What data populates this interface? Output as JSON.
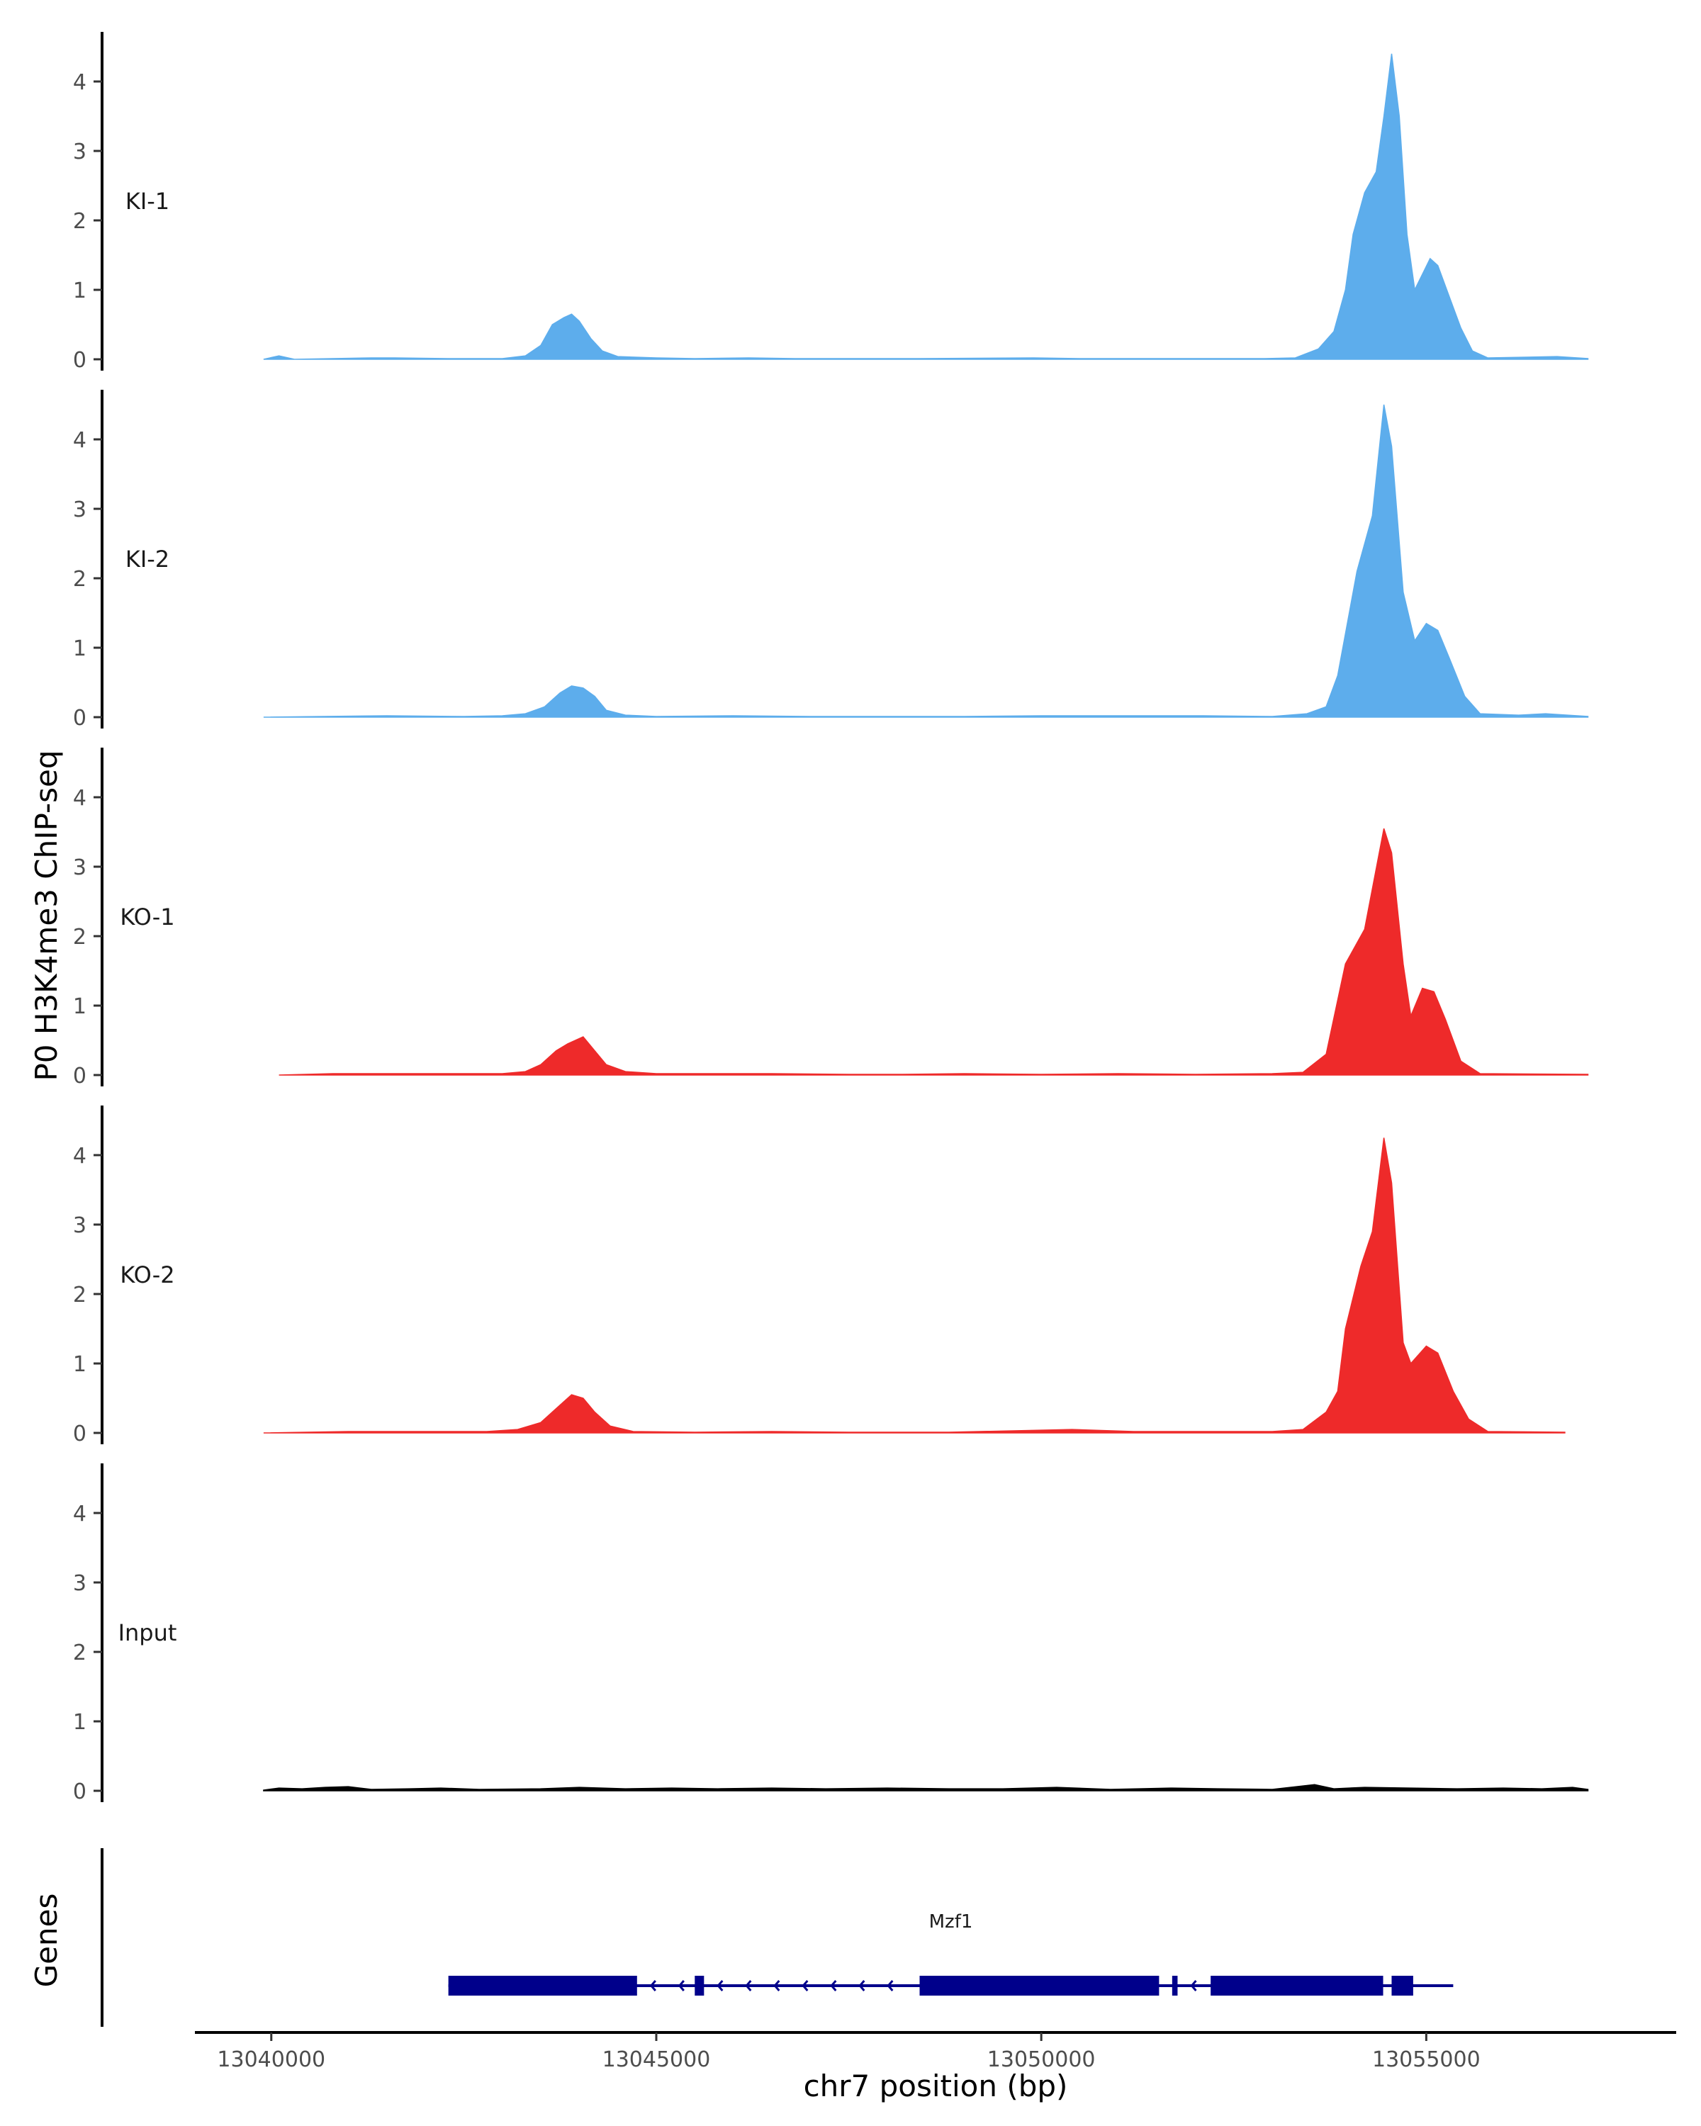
{
  "chart_data": {
    "type": "area",
    "ylabel": "P0 H3K4me3 ChIP-seq",
    "xlabel": "chr7 position (bp)",
    "xlim": [
      13039100,
      13058200
    ],
    "ylim": [
      -0.1,
      4.7
    ],
    "x_ticks": [
      13040000,
      13045000,
      13050000,
      13055000
    ],
    "x_tick_labels": [
      "13040000",
      "13045000",
      "13050000",
      "13055000"
    ],
    "y_ticks": [
      0,
      1,
      2,
      3,
      4
    ],
    "y_tick_labels": [
      "0",
      "1",
      "2",
      "3",
      "4"
    ],
    "colors": {
      "KI": "#5DADEC",
      "KO": "#EE2A2A",
      "Input": "#000000",
      "gene": "#00008B"
    },
    "tracks": [
      {
        "name": "KI-1",
        "color": "#5DADEC",
        "points": [
          [
            13039900,
            0
          ],
          [
            13040100,
            0.05
          ],
          [
            13040300,
            0
          ],
          [
            13041300,
            0.02
          ],
          [
            13041600,
            0.02
          ],
          [
            13042300,
            0.01
          ],
          [
            13043000,
            0.01
          ],
          [
            13043300,
            0.05
          ],
          [
            13043500,
            0.2
          ],
          [
            13043650,
            0.5
          ],
          [
            13043800,
            0.6
          ],
          [
            13043900,
            0.65
          ],
          [
            13044000,
            0.55
          ],
          [
            13044150,
            0.3
          ],
          [
            13044300,
            0.12
          ],
          [
            13044500,
            0.04
          ],
          [
            13045000,
            0.02
          ],
          [
            13045500,
            0.01
          ],
          [
            13046200,
            0.02
          ],
          [
            13046800,
            0.01
          ],
          [
            13047800,
            0.01
          ],
          [
            13048400,
            0.01
          ],
          [
            13049900,
            0.02
          ],
          [
            13050500,
            0.01
          ],
          [
            13051900,
            0.01
          ],
          [
            13052900,
            0.01
          ],
          [
            13053300,
            0.02
          ],
          [
            13053600,
            0.15
          ],
          [
            13053800,
            0.4
          ],
          [
            13053950,
            1.0
          ],
          [
            13054050,
            1.8
          ],
          [
            13054200,
            2.4
          ],
          [
            13054350,
            2.7
          ],
          [
            13054450,
            3.5
          ],
          [
            13054550,
            4.4
          ],
          [
            13054650,
            3.5
          ],
          [
            13054750,
            1.8
          ],
          [
            13054850,
            1.0
          ],
          [
            13055050,
            1.45
          ],
          [
            13055150,
            1.35
          ],
          [
            13055300,
            0.9
          ],
          [
            13055450,
            0.45
          ],
          [
            13055600,
            0.12
          ],
          [
            13055800,
            0.02
          ],
          [
            13056700,
            0.04
          ],
          [
            13057100,
            0.01
          ]
        ]
      },
      {
        "name": "KI-2",
        "color": "#5DADEC",
        "points": [
          [
            13039900,
            0
          ],
          [
            13041500,
            0.02
          ],
          [
            13042500,
            0.01
          ],
          [
            13043000,
            0.02
          ],
          [
            13043300,
            0.05
          ],
          [
            13043550,
            0.15
          ],
          [
            13043750,
            0.35
          ],
          [
            13043900,
            0.45
          ],
          [
            13044050,
            0.42
          ],
          [
            13044200,
            0.3
          ],
          [
            13044350,
            0.1
          ],
          [
            13044600,
            0.03
          ],
          [
            13045000,
            0.01
          ],
          [
            13046000,
            0.02
          ],
          [
            13047000,
            0.01
          ],
          [
            13048000,
            0.01
          ],
          [
            13049000,
            0.01
          ],
          [
            13050000,
            0.02
          ],
          [
            13051300,
            0.02
          ],
          [
            13052100,
            0.02
          ],
          [
            13053000,
            0.01
          ],
          [
            13053450,
            0.05
          ],
          [
            13053700,
            0.15
          ],
          [
            13053850,
            0.6
          ],
          [
            13053950,
            1.2
          ],
          [
            13054100,
            2.1
          ],
          [
            13054300,
            2.9
          ],
          [
            13054450,
            4.5
          ],
          [
            13054550,
            3.9
          ],
          [
            13054700,
            1.8
          ],
          [
            13054850,
            1.1
          ],
          [
            13055000,
            1.35
          ],
          [
            13055150,
            1.25
          ],
          [
            13055300,
            0.85
          ],
          [
            13055500,
            0.3
          ],
          [
            13055700,
            0.05
          ],
          [
            13056200,
            0.03
          ],
          [
            13056550,
            0.05
          ],
          [
            13057100,
            0.01
          ]
        ]
      },
      {
        "name": "KO-1",
        "color": "#EE2A2A",
        "points": [
          [
            13040100,
            0
          ],
          [
            13040800,
            0.02
          ],
          [
            13041700,
            0.02
          ],
          [
            13042400,
            0.02
          ],
          [
            13043000,
            0.02
          ],
          [
            13043300,
            0.05
          ],
          [
            13043500,
            0.15
          ],
          [
            13043700,
            0.35
          ],
          [
            13043850,
            0.45
          ],
          [
            13044050,
            0.55
          ],
          [
            13044200,
            0.35
          ],
          [
            13044350,
            0.15
          ],
          [
            13044600,
            0.05
          ],
          [
            13045000,
            0.02
          ],
          [
            13045800,
            0.02
          ],
          [
            13046500,
            0.02
          ],
          [
            13047500,
            0.01
          ],
          [
            13048200,
            0.01
          ],
          [
            13049000,
            0.02
          ],
          [
            13050000,
            0.01
          ],
          [
            13051000,
            0.02
          ],
          [
            13052000,
            0.01
          ],
          [
            13053000,
            0.02
          ],
          [
            13053400,
            0.04
          ],
          [
            13053700,
            0.3
          ],
          [
            13053950,
            1.6
          ],
          [
            13054200,
            2.1
          ],
          [
            13054450,
            3.55
          ],
          [
            13054550,
            3.2
          ],
          [
            13054700,
            1.6
          ],
          [
            13054800,
            0.85
          ],
          [
            13054950,
            1.25
          ],
          [
            13055100,
            1.2
          ],
          [
            13055250,
            0.8
          ],
          [
            13055450,
            0.2
          ],
          [
            13055700,
            0.02
          ],
          [
            13057100,
            0.01
          ]
        ]
      },
      {
        "name": "KO-2",
        "color": "#EE2A2A",
        "points": [
          [
            13039900,
            0
          ],
          [
            13041000,
            0.02
          ],
          [
            13042000,
            0.02
          ],
          [
            13042800,
            0.02
          ],
          [
            13043200,
            0.05
          ],
          [
            13043500,
            0.15
          ],
          [
            13043700,
            0.35
          ],
          [
            13043900,
            0.55
          ],
          [
            13044050,
            0.5
          ],
          [
            13044200,
            0.3
          ],
          [
            13044400,
            0.1
          ],
          [
            13044700,
            0.02
          ],
          [
            13045500,
            0.01
          ],
          [
            13046500,
            0.02
          ],
          [
            13047500,
            0.01
          ],
          [
            13048800,
            0.01
          ],
          [
            13050400,
            0.05
          ],
          [
            13051200,
            0.02
          ],
          [
            13052000,
            0.02
          ],
          [
            13053000,
            0.02
          ],
          [
            13053400,
            0.05
          ],
          [
            13053700,
            0.3
          ],
          [
            13053850,
            0.6
          ],
          [
            13053950,
            1.5
          ],
          [
            13054150,
            2.4
          ],
          [
            13054300,
            2.9
          ],
          [
            13054450,
            4.25
          ],
          [
            13054550,
            3.6
          ],
          [
            13054700,
            1.3
          ],
          [
            13054800,
            1.0
          ],
          [
            13055000,
            1.25
          ],
          [
            13055150,
            1.15
          ],
          [
            13055350,
            0.6
          ],
          [
            13055550,
            0.2
          ],
          [
            13055800,
            0.02
          ],
          [
            13056800,
            0.01
          ]
        ]
      },
      {
        "name": "Input",
        "color": "#000000",
        "points": [
          [
            13039900,
            0.01
          ],
          [
            13040100,
            0.04
          ],
          [
            13040400,
            0.03
          ],
          [
            13040700,
            0.05
          ],
          [
            13041000,
            0.06
          ],
          [
            13041300,
            0.02
          ],
          [
            13041800,
            0.03
          ],
          [
            13042200,
            0.04
          ],
          [
            13042700,
            0.02
          ],
          [
            13043500,
            0.03
          ],
          [
            13044000,
            0.05
          ],
          [
            13044600,
            0.03
          ],
          [
            13045200,
            0.04
          ],
          [
            13045800,
            0.03
          ],
          [
            13046500,
            0.04
          ],
          [
            13047200,
            0.03
          ],
          [
            13048000,
            0.04
          ],
          [
            13048800,
            0.03
          ],
          [
            13049500,
            0.03
          ],
          [
            13050200,
            0.05
          ],
          [
            13050900,
            0.02
          ],
          [
            13051700,
            0.04
          ],
          [
            13052300,
            0.03
          ],
          [
            13053000,
            0.02
          ],
          [
            13053550,
            0.09
          ],
          [
            13053800,
            0.03
          ],
          [
            13054200,
            0.05
          ],
          [
            13054800,
            0.04
          ],
          [
            13055400,
            0.03
          ],
          [
            13056000,
            0.04
          ],
          [
            13056500,
            0.03
          ],
          [
            13056900,
            0.05
          ],
          [
            13057100,
            0.02
          ]
        ]
      }
    ],
    "genes_track": {
      "label": "Genes",
      "gene_name": "Mzf1",
      "strand": "-",
      "start": 13042300,
      "end": 13055350,
      "exons": [
        [
          13042300,
          13044750
        ],
        [
          13045500,
          13045620
        ],
        [
          13048420,
          13051530
        ],
        [
          13051700,
          13051770
        ],
        [
          13052200,
          13054440
        ],
        [
          13054550,
          13054830
        ]
      ]
    }
  }
}
